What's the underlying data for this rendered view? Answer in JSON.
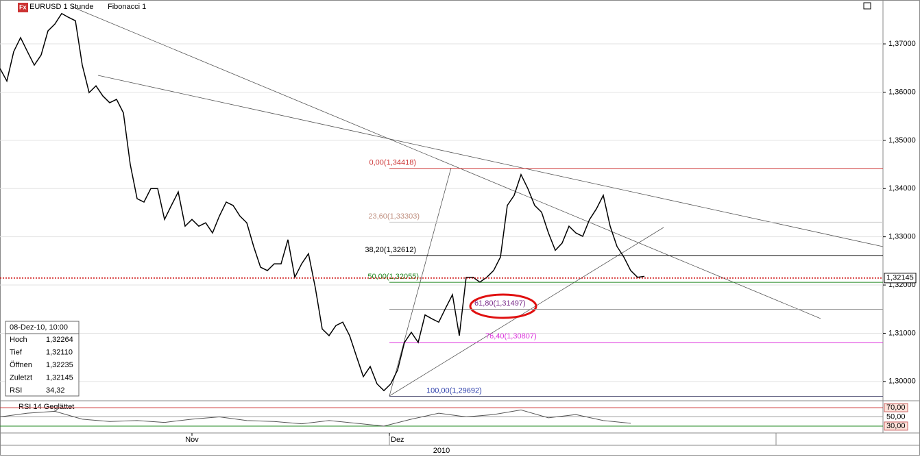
{
  "chart_data": {
    "type": "line",
    "title": "EURUSD 1 Stunde",
    "indicator": "Fibonacci 1",
    "color": "#000000",
    "values": [
      1.3649,
      1.3623,
      1.3684,
      1.3713,
      1.3684,
      1.3656,
      1.3677,
      1.3727,
      1.3741,
      1.3763,
      1.3755,
      1.3748,
      1.3656,
      1.3599,
      1.3613,
      1.3592,
      1.3578,
      1.3585,
      1.3557,
      1.345,
      1.3379,
      1.3372,
      1.34,
      1.34,
      1.3336,
      1.3365,
      1.3393,
      1.3322,
      1.3336,
      1.3322,
      1.3329,
      1.3308,
      1.3343,
      1.3372,
      1.3365,
      1.3343,
      1.3329,
      1.328,
      1.3237,
      1.323,
      1.3244,
      1.3244,
      1.3294,
      1.3216,
      1.3244,
      1.3265,
      1.3194,
      1.3109,
      1.3095,
      1.3116,
      1.3123,
      1.3095,
      1.3052,
      1.301,
      1.3031,
      1.2995,
      1.2981,
      1.2995,
      1.3024,
      1.3081,
      1.3102,
      1.3081,
      1.3138,
      1.313,
      1.3123,
      1.3152,
      1.318,
      1.3095,
      1.3216,
      1.3216,
      1.3206,
      1.3216,
      1.323,
      1.3258,
      1.3365,
      1.3386,
      1.3429,
      1.34,
      1.3365,
      1.3351,
      1.3308,
      1.3272,
      1.3287,
      1.3322,
      1.3308,
      1.3301,
      1.3336,
      1.3358,
      1.3386,
      1.3322,
      1.328,
      1.3258,
      1.323,
      1.3216,
      1.3218
    ],
    "xlim": [
      0,
      128.8
    ],
    "ylim": [
      1.296,
      1.3791
    ],
    "yticks": [
      {
        "value": 1.3,
        "label": "1,30000"
      },
      {
        "value": 1.31,
        "label": "1,31000"
      },
      {
        "value": 1.32,
        "label": "1,32000"
      },
      {
        "value": 1.33,
        "label": "1,33000"
      },
      {
        "value": 1.34,
        "label": "1,34000"
      },
      {
        "value": 1.35,
        "label": "1,35000"
      },
      {
        "value": 1.36,
        "label": "1,36000"
      },
      {
        "value": 1.37,
        "label": "1,37000"
      }
    ],
    "xticks": [
      {
        "value": 28,
        "label": "Nov"
      },
      {
        "value": 56.8,
        "label": "Dez"
      }
    ],
    "year_label": "2010",
    "grid": true,
    "fib_levels": [
      {
        "value": 1.34418,
        "label": "0,00(1,34418)",
        "color": "#cc3333"
      },
      {
        "value": 1.33303,
        "label": "23,60(1,33303)",
        "color": "#c09080"
      },
      {
        "value": 1.32612,
        "label": "38,20(1,32612)",
        "color": "#000000"
      },
      {
        "value": 1.32055,
        "label": "50,00(1,32055)",
        "color": "#228822"
      },
      {
        "value": 1.31497,
        "label": "61,80(1,31497)",
        "color": "#7a2a8a"
      },
      {
        "value": 1.30807,
        "label": "76,40(1,30807)",
        "color": "#dd33dd"
      },
      {
        "value": 1.29692,
        "label": "100,00(1,29692)",
        "color": "#2a3caa"
      }
    ],
    "last_price": {
      "value": 1.32145,
      "label": "1,32145"
    },
    "info": {
      "header": "08-Dez-10, 10:00",
      "rows": [
        [
          "Hoch",
          "1,32264"
        ],
        [
          "Tief",
          "1,32110"
        ],
        [
          "Öffnen",
          "1,32235"
        ],
        [
          "Zuletzt",
          "1,32145"
        ],
        [
          "RSI",
          "34,32"
        ]
      ]
    },
    "rsi": {
      "title": "RSI 14 Geglättet",
      "color": "#555555",
      "x": [
        0,
        4,
        8,
        12,
        16,
        20,
        24,
        28,
        32,
        36,
        40,
        44,
        48,
        52,
        56,
        60,
        64,
        68,
        72,
        76,
        80,
        84,
        88,
        92
      ],
      "values": [
        50,
        58,
        62,
        45,
        40,
        42,
        38,
        45,
        50,
        42,
        40,
        35,
        42,
        36,
        30,
        45,
        58,
        50,
        55,
        65,
        48,
        55,
        42,
        36
      ],
      "ylim": [
        18,
        82
      ],
      "yticks": [
        {
          "value": 70,
          "label": "70,00"
        },
        {
          "value": 50,
          "label": "50,00"
        },
        {
          "value": 30,
          "label": "30,00"
        }
      ]
    }
  }
}
